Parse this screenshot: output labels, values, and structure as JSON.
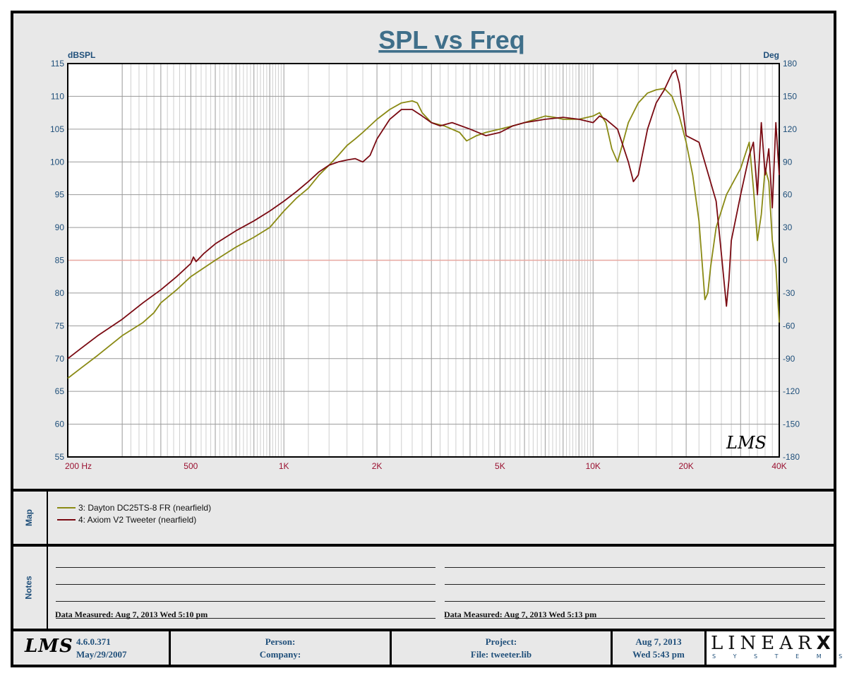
{
  "chart_data": {
    "type": "line",
    "title": "SPL vs Freq",
    "ylabel_left": "dBSPL",
    "ylabel_right": "Deg",
    "x_scale": "log",
    "xlim": [
      200,
      40000
    ],
    "ylim": [
      55,
      115
    ],
    "ylim_right": [
      -180,
      180
    ],
    "x_tick_values": [
      200,
      500,
      1000,
      2000,
      5000,
      10000,
      20000,
      40000
    ],
    "x_tick_labels": [
      "200  Hz",
      "500",
      "1K",
      "2K",
      "5K",
      "10K",
      "20K",
      "40K"
    ],
    "y_ticks_left": [
      115,
      110,
      105,
      100,
      95,
      90,
      85,
      80,
      75,
      70,
      65,
      60,
      55
    ],
    "y_ticks_right": [
      180,
      150,
      120,
      90,
      60,
      30,
      0,
      -30,
      -60,
      -90,
      -120,
      -150,
      -180
    ],
    "grid": true,
    "reference_line_y": 85,
    "watermark": "LMS",
    "series": [
      {
        "name": "3: Dayton DC25TS-8 FR (nearfield)",
        "color": "#8a8a14",
        "x": [
          200,
          220,
          250,
          300,
          350,
          380,
          400,
          450,
          500,
          600,
          700,
          800,
          900,
          1000,
          1100,
          1200,
          1300,
          1400,
          1500,
          1600,
          1700,
          1800,
          2000,
          2200,
          2400,
          2600,
          2700,
          2800,
          3000,
          3300,
          3700,
          3900,
          4200,
          4500,
          5000,
          5500,
          6000,
          6500,
          7000,
          7500,
          8000,
          9000,
          10000,
          10500,
          11000,
          11500,
          12000,
          12500,
          13000,
          14000,
          15000,
          16000,
          17000,
          18000,
          19000,
          20000,
          21000,
          22000,
          23000,
          23500,
          24000,
          25000,
          27000,
          30000,
          32000,
          33000,
          34000,
          35000,
          36000,
          37000,
          38000,
          39000,
          40000
        ],
        "y": [
          67.0,
          68.5,
          70.5,
          73.5,
          75.5,
          77.0,
          78.5,
          80.5,
          82.5,
          85.0,
          87.0,
          88.5,
          90.0,
          92.5,
          94.5,
          96.0,
          98.0,
          99.5,
          101.0,
          102.5,
          103.5,
          104.5,
          106.5,
          108.0,
          109.0,
          109.3,
          109.0,
          107.5,
          106.0,
          105.5,
          104.5,
          103.2,
          104.0,
          104.5,
          105.0,
          105.5,
          106.0,
          106.5,
          107.0,
          106.8,
          106.5,
          106.5,
          107.0,
          107.5,
          106.0,
          102.0,
          100.0,
          103.0,
          106.0,
          109.0,
          110.5,
          111.0,
          111.2,
          110.0,
          107.0,
          103.0,
          98.0,
          91.0,
          79.0,
          80.0,
          84.0,
          90.0,
          95.0,
          99.0,
          103.0,
          96.0,
          88.0,
          92.0,
          99.0,
          97.0,
          88.0,
          84.0,
          75.5
        ]
      },
      {
        "name": "4: Axiom V2 Tweeter (nearfield)",
        "color": "#7a0a12",
        "x": [
          200,
          220,
          250,
          300,
          350,
          400,
          450,
          500,
          510,
          520,
          550,
          600,
          700,
          800,
          900,
          1000,
          1100,
          1200,
          1300,
          1400,
          1500,
          1600,
          1700,
          1800,
          1900,
          2000,
          2200,
          2400,
          2600,
          2800,
          3000,
          3200,
          3500,
          4000,
          4500,
          5000,
          5500,
          6000,
          7000,
          8000,
          9000,
          10000,
          10500,
          11000,
          12000,
          13000,
          13500,
          14000,
          15000,
          16000,
          17000,
          18000,
          18500,
          19000,
          20000,
          22000,
          25000,
          26000,
          27000,
          27500,
          28000,
          30000,
          32000,
          33000,
          34000,
          35000,
          36000,
          37000,
          38000,
          39000,
          40000
        ],
        "y": [
          70.0,
          71.5,
          73.5,
          76.0,
          78.5,
          80.5,
          82.5,
          84.5,
          85.5,
          84.8,
          86.0,
          87.5,
          89.5,
          91.0,
          92.5,
          94.0,
          95.5,
          97.0,
          98.5,
          99.5,
          100.0,
          100.3,
          100.5,
          100.0,
          101.0,
          103.5,
          106.5,
          108.0,
          108.0,
          107.0,
          106.0,
          105.5,
          106.0,
          105.0,
          104.0,
          104.5,
          105.5,
          106.0,
          106.5,
          106.8,
          106.5,
          106.0,
          107.0,
          106.5,
          105.0,
          100.0,
          97.0,
          98.0,
          105.0,
          109.0,
          111.0,
          113.5,
          114.0,
          112.0,
          104.0,
          103.0,
          94.0,
          86.0,
          78.0,
          82.0,
          88.0,
          95.0,
          101.0,
          103.0,
          95.0,
          106.0,
          98.0,
          102.0,
          93.0,
          106.0,
          98.0
        ]
      }
    ]
  },
  "map_panel": {
    "label": "Map"
  },
  "notes_panel": {
    "label": "Notes",
    "left_measured": "Data Measured: Aug  7, 2013  Wed  5:10 pm",
    "right_measured": "Data Measured: Aug  7, 2013  Wed  5:13 pm"
  },
  "footer": {
    "logo": "LMS",
    "version": "4.6.0.371",
    "version_date": "May/29/2007",
    "person_label": "Person:",
    "company_label": "Company:",
    "project_label": "Project:",
    "file_label": "File: tweeter.lib",
    "date": "Aug  7, 2013",
    "time": "Wed  5:43 pm",
    "brand_top": "LINEAR",
    "brand_x": "X",
    "brand_bottom": "S Y S T E M S"
  }
}
